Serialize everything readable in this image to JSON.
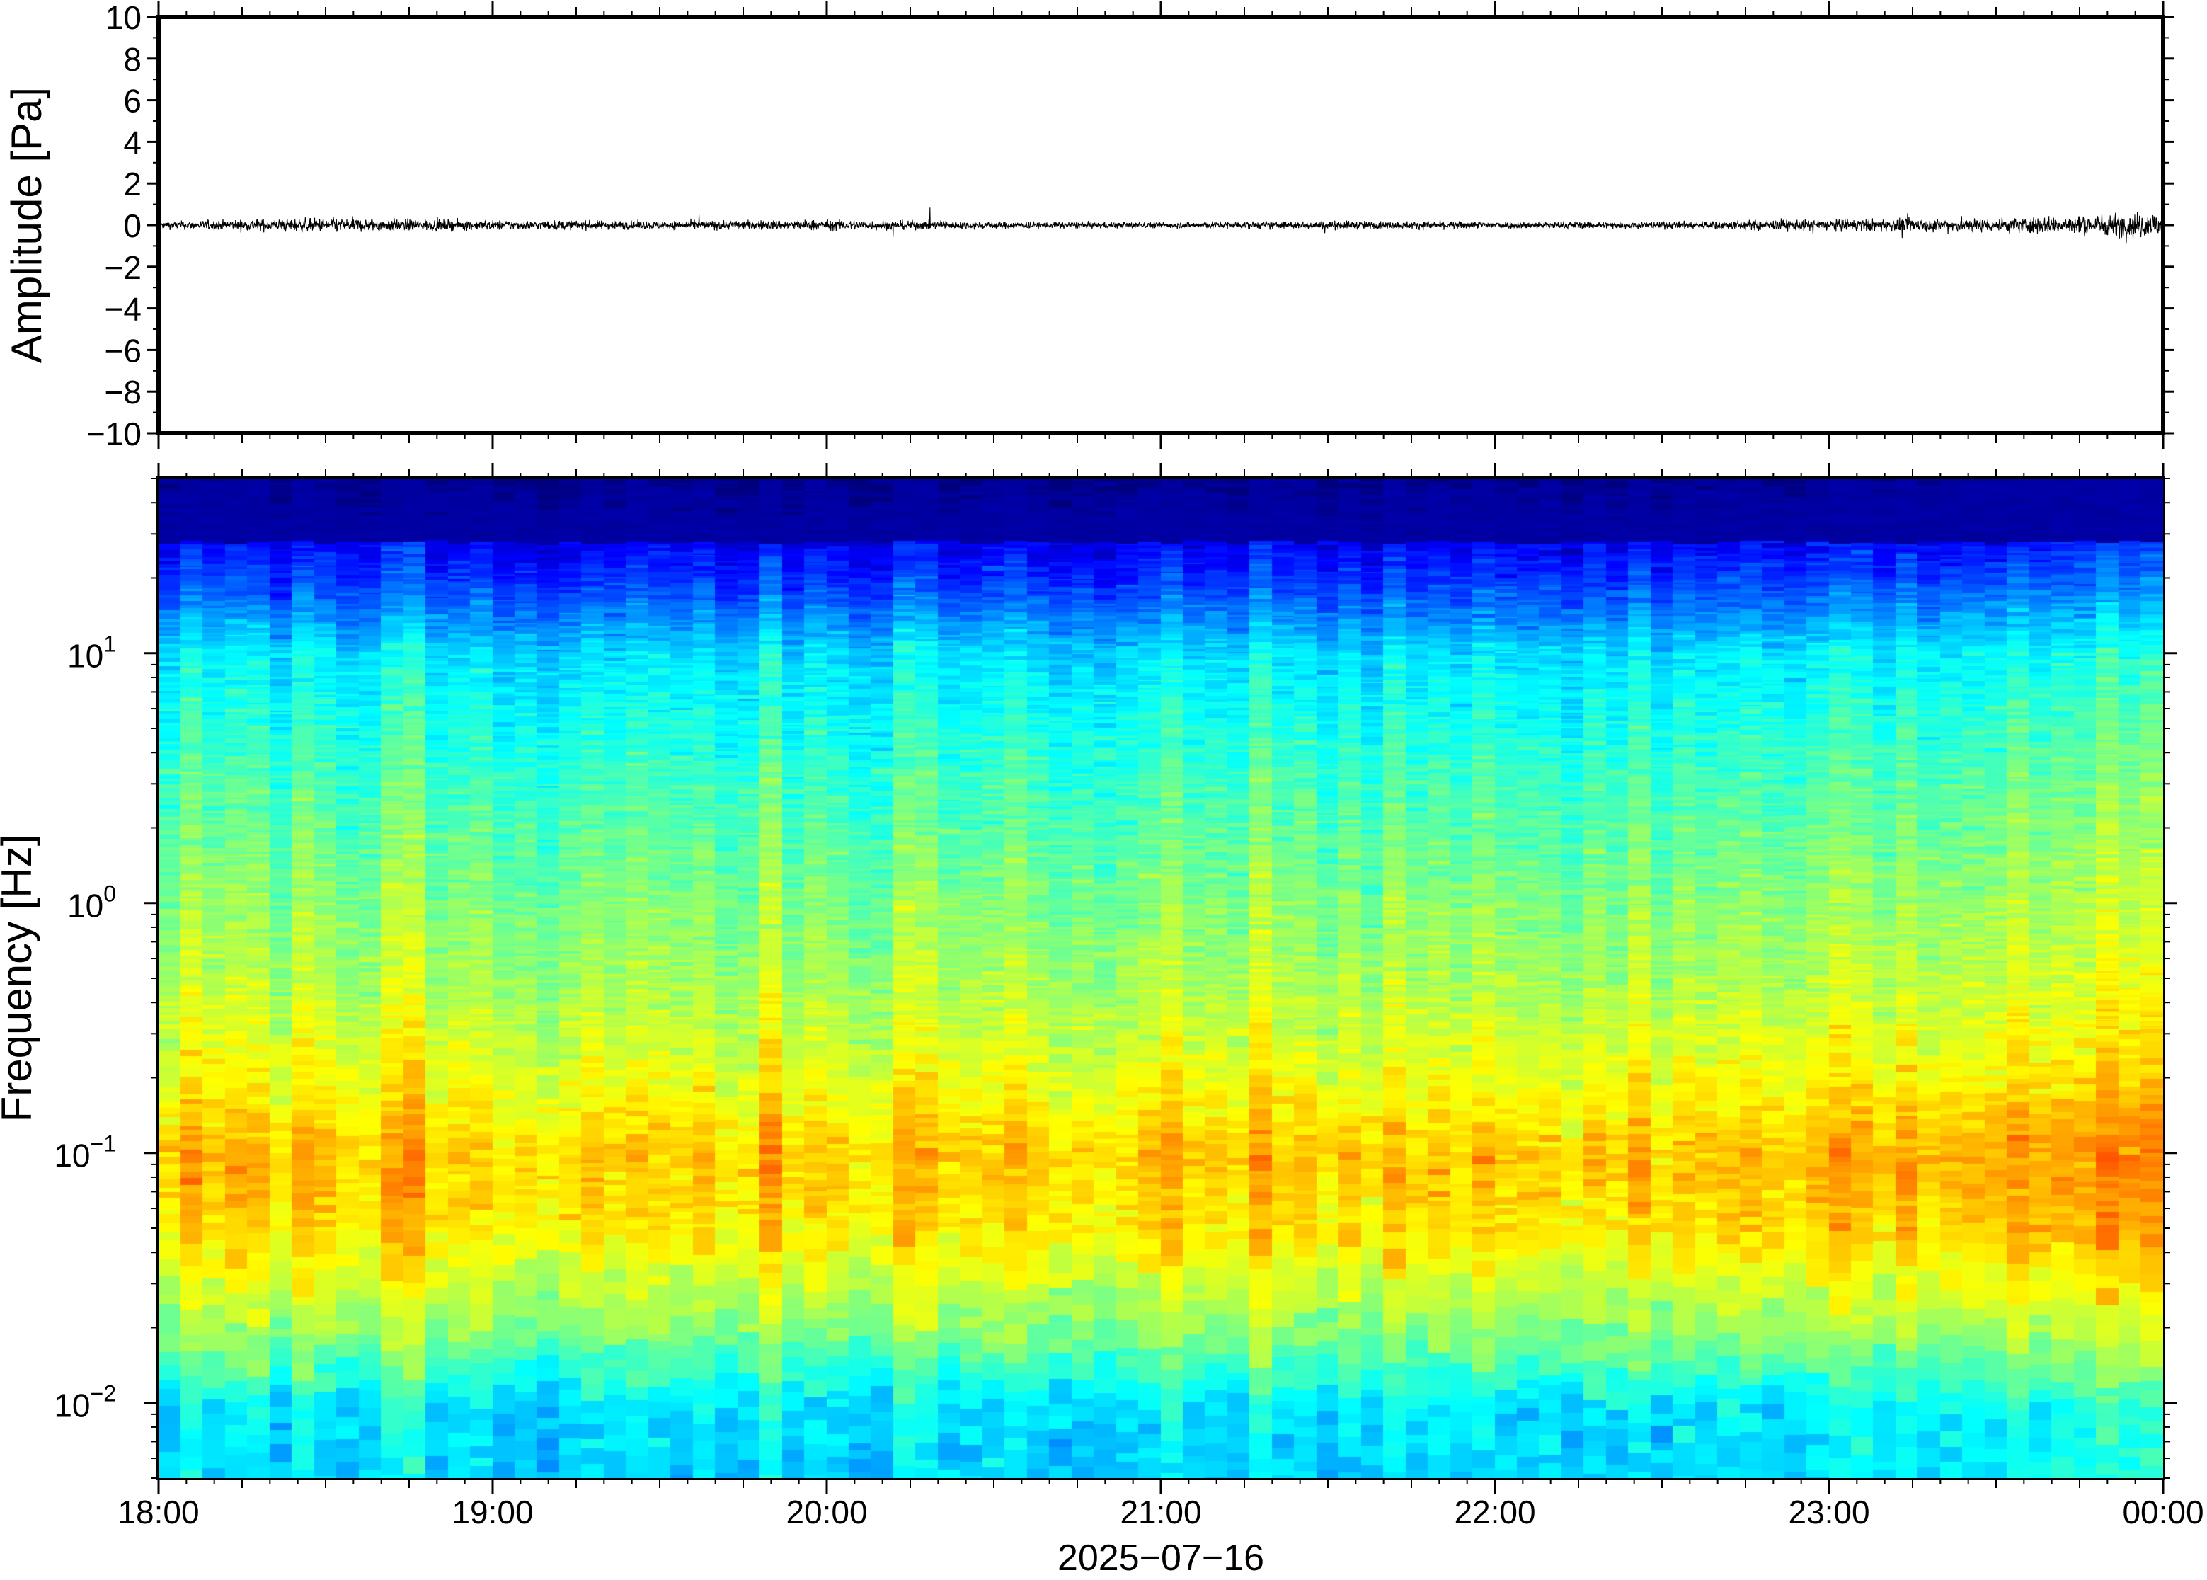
{
  "chart_data": [
    {
      "type": "line",
      "ylabel": "Amplitude [Pa]",
      "ylim": [
        -10,
        10
      ],
      "yticks": [
        -10,
        -8,
        -6,
        -4,
        -2,
        0,
        2,
        4,
        6,
        8,
        10
      ],
      "ytick_labels": [
        "−10",
        "−8",
        "−6",
        "−4",
        "−2",
        "0",
        "2",
        "4",
        "6",
        "8",
        "10"
      ],
      "x_range": [
        "2025-07-16 18:00",
        "2025-07-17 00:00"
      ],
      "series": [
        {
          "x": [
            "18:00",
            "18:30",
            "19:00",
            "19:30",
            "20:00",
            "20:30",
            "21:00",
            "21:30",
            "22:00",
            "22:30",
            "23:00",
            "23:30",
            "23:45",
            "00:00"
          ],
          "amplitude_envelope": [
            0.3,
            0.6,
            0.4,
            0.35,
            0.45,
            0.3,
            0.25,
            0.35,
            0.3,
            0.3,
            0.5,
            0.6,
            0.8,
            1.2
          ]
        }
      ],
      "line_color": "#000000",
      "grid": false
    },
    {
      "type": "heatmap",
      "ylabel": "Frequency [Hz]",
      "xlabel": "2025−07−16",
      "yscale": "log",
      "ylim": [
        0.005,
        50
      ],
      "yticks": [
        {
          "base": "10",
          "exp": "−2",
          "value": 0.01
        },
        {
          "base": "10",
          "exp": "−1",
          "value": 0.1
        },
        {
          "base": "10",
          "exp": "0",
          "value": 1
        },
        {
          "base": "10",
          "exp": "1",
          "value": 10
        }
      ],
      "xtick_labels": [
        "18:00",
        "19:00",
        "20:00",
        "21:00",
        "22:00",
        "23:00",
        "00:00"
      ],
      "colormap": "jet",
      "colormap_stops": [
        "#00007f",
        "#0000ff",
        "#007fff",
        "#00ffff",
        "#7fff7f",
        "#ffff00",
        "#ff7f00",
        "#ff0000"
      ],
      "power_profile": {
        "log10_frequency": [
          -2.3,
          -2.0,
          -1.7,
          -1.3,
          -1.0,
          -0.7,
          -0.3,
          0.0,
          0.5,
          1.0,
          1.3,
          1.7
        ],
        "relative_level": [
          0.38,
          0.4,
          0.58,
          0.74,
          0.78,
          0.7,
          0.62,
          0.58,
          0.5,
          0.4,
          0.2,
          0.02
        ]
      },
      "grid": false
    }
  ]
}
